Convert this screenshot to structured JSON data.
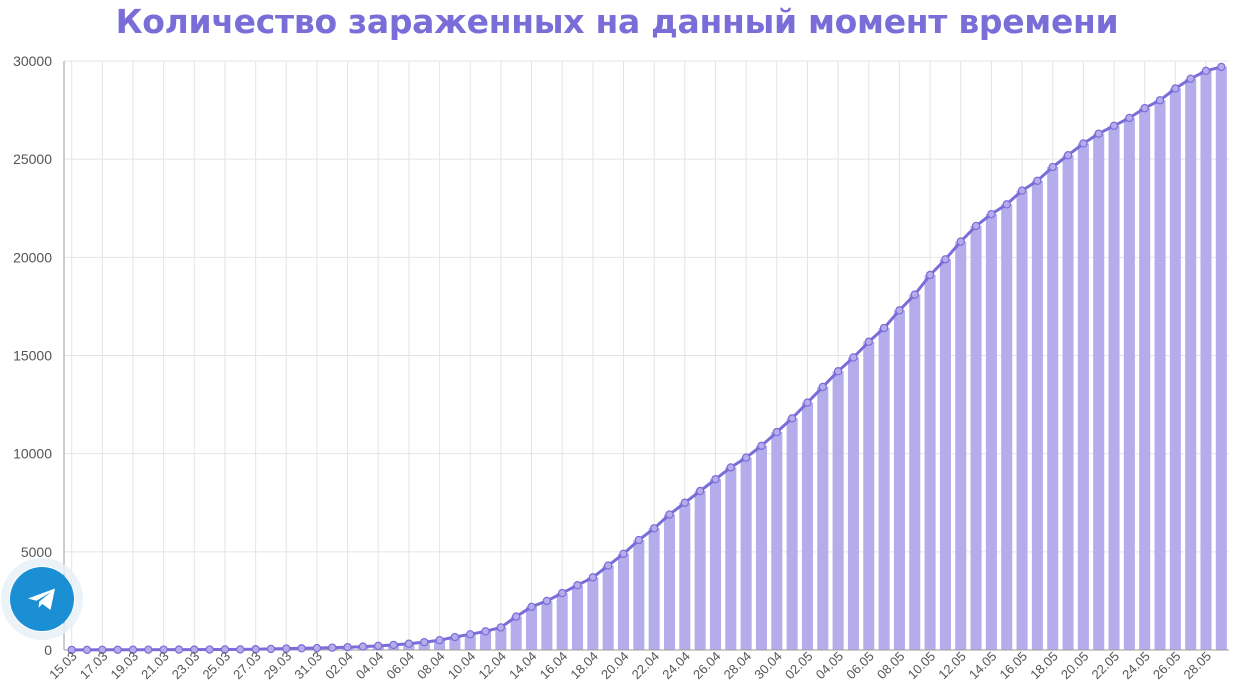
{
  "colors": {
    "accent": "#7b6dd8",
    "bar": "#b5aceb",
    "telegram": "#1a8fd4",
    "grid": "#e4e4e4",
    "axis": "#9e9e9e",
    "tick": "#555555"
  },
  "telegram_button": {
    "icon": "telegram-plane-icon"
  },
  "chart_data": {
    "type": "bar",
    "title": "Количество зараженных на данный момент времени",
    "xlabel": "",
    "ylabel": "",
    "ylim": [
      0,
      30000
    ],
    "yticks": [
      0,
      5000,
      10000,
      15000,
      20000,
      25000,
      30000
    ],
    "grid": true,
    "legend": "none",
    "x_tick_labels": [
      "15.03",
      "17.03",
      "19.03",
      "21.03",
      "23.03",
      "25.03",
      "27.03",
      "29.03",
      "31.03",
      "02.04",
      "04.04",
      "06.04",
      "08.04",
      "10.04",
      "12.04",
      "14.04",
      "16.04",
      "18.04",
      "20.04",
      "22.04",
      "24.04",
      "26.04",
      "28.04",
      "30.04",
      "02.05",
      "04.05",
      "06.05",
      "08.05",
      "10.05",
      "12.05",
      "14.05",
      "16.05",
      "18.05",
      "20.05",
      "22.05",
      "24.05",
      "26.05",
      "28.05"
    ],
    "categories": [
      "15.03",
      "16.03",
      "17.03",
      "18.03",
      "19.03",
      "20.03",
      "21.03",
      "22.03",
      "23.03",
      "24.03",
      "25.03",
      "26.03",
      "27.03",
      "28.03",
      "29.03",
      "30.03",
      "31.03",
      "01.04",
      "02.04",
      "03.04",
      "04.04",
      "05.04",
      "06.04",
      "07.04",
      "08.04",
      "09.04",
      "10.04",
      "11.04",
      "12.04",
      "13.04",
      "14.04",
      "15.04",
      "16.04",
      "17.04",
      "18.04",
      "19.04",
      "20.04",
      "21.04",
      "22.04",
      "23.04",
      "24.04",
      "25.04",
      "26.04",
      "27.04",
      "28.04",
      "29.04",
      "30.04",
      "01.05",
      "02.05",
      "03.05",
      "04.05",
      "05.05",
      "06.05",
      "07.05",
      "08.05",
      "09.05",
      "10.05",
      "11.05",
      "12.05",
      "13.05",
      "14.05",
      "15.05",
      "16.05",
      "17.05",
      "18.05",
      "19.05",
      "20.05",
      "21.05",
      "22.05",
      "23.05",
      "24.05",
      "25.05",
      "26.05",
      "27.05",
      "28.05",
      "29.05"
    ],
    "series": [
      {
        "values": [
          5,
          7,
          10,
          12,
          14,
          16,
          18,
          20,
          22,
          24,
          26,
          30,
          40,
          55,
          70,
          85,
          100,
          120,
          145,
          175,
          210,
          260,
          320,
          400,
          500,
          660,
          800,
          950,
          1150,
          1700,
          2200,
          2500,
          2900,
          3300,
          3700,
          4300,
          4900,
          5600,
          6200,
          6900,
          7500,
          8100,
          8700,
          9300,
          9800,
          10400,
          11100,
          11800,
          12600,
          13400,
          14200,
          14900,
          15700,
          16400,
          17300,
          18100,
          19100,
          19900,
          20800,
          21600,
          22200,
          22700,
          23400,
          23900,
          24600,
          25200,
          25800,
          26300,
          26700,
          27100,
          27600,
          28000,
          28600,
          29100,
          29500,
          29700
        ]
      }
    ]
  }
}
